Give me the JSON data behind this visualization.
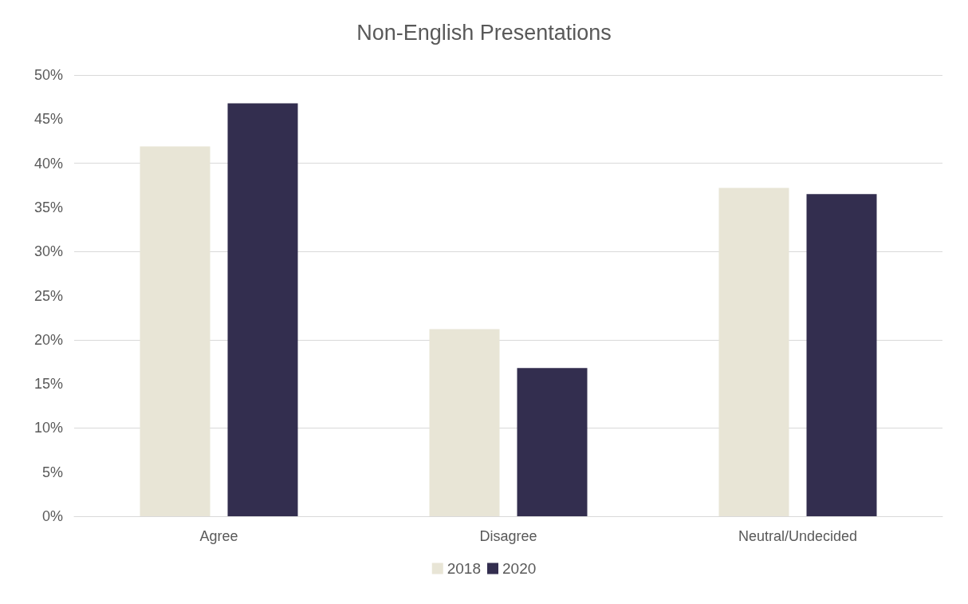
{
  "chart_data": {
    "type": "bar",
    "title": "Non-English Presentations",
    "categories": [
      "Agree",
      "Disagree",
      "Neutral/Undecided"
    ],
    "series": [
      {
        "name": "2018",
        "color": "#e8e5d6",
        "values": [
          41.9,
          21.2,
          37.2
        ]
      },
      {
        "name": "2020",
        "color": "#332e4f",
        "values": [
          46.8,
          16.8,
          36.5
        ]
      }
    ],
    "ylim": [
      0,
      50
    ],
    "yticks": [
      {
        "value": 0,
        "label": "0%"
      },
      {
        "value": 5,
        "label": "5%"
      },
      {
        "value": 10,
        "label": "10%"
      },
      {
        "value": 15,
        "label": "15%"
      },
      {
        "value": 20,
        "label": "20%"
      },
      {
        "value": 25,
        "label": "25%"
      },
      {
        "value": 30,
        "label": "30%"
      },
      {
        "value": 35,
        "label": "35%"
      },
      {
        "value": 40,
        "label": "40%"
      },
      {
        "value": 45,
        "label": "45%"
      },
      {
        "value": 50,
        "label": "50%"
      }
    ],
    "grid": "y",
    "legend": "bottom"
  }
}
